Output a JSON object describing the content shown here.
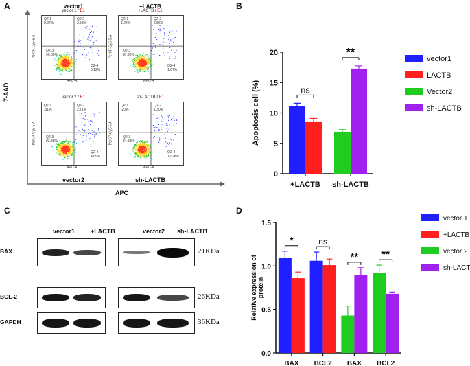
{
  "panels": {
    "a": "A",
    "b": "B",
    "c": "C",
    "d": "D"
  },
  "panel_a": {
    "y_axis_label": "7-AAD",
    "x_axis_label": "APC",
    "plots": [
      {
        "title": "vector1",
        "subtitle_main": "vector 1",
        "subtitle_flag": "E1",
        "q1_name": "Q2-1",
        "q1_val": "0.27%",
        "q2_name": "Q2-2",
        "q2_val": "3.58%",
        "q3_name": "Q2-3",
        "q3_val": "90.80%",
        "q4_name": "Q2-4",
        "q4_val": "5.12%"
      },
      {
        "title": "+LACTB",
        "subtitle_main": "+LACTB",
        "subtitle_flag": "E1",
        "q1_name": "Q2-1",
        "q1_val": "1.24%",
        "q2_name": "Q2-2",
        "q2_val": "5.86%",
        "q3_name": "Q2-3",
        "q3_val": "87.90%",
        "q4_name": "Q2-4",
        "q4_val": "1.07%"
      },
      {
        "title": "",
        "subtitle_main": "vector 2",
        "subtitle_flag": "E1",
        "q1_name": "Q2-1",
        "q1_val": ".31%",
        "q2_name": "Q2-2",
        "q2_val": "2.71%",
        "q3_name": "Q2-3",
        "q3_val": "92.88%",
        "q4_name": "Q2-4",
        "q4_val": "4.89%"
      },
      {
        "title": "",
        "subtitle_main": "sh-LACTB",
        "subtitle_flag": "E1",
        "q1_name": "Q2-1",
        "q1_val": ".20%",
        "q2_name": "Q2-2",
        "q2_val": "1.30%",
        "q3_name": "Q2-3",
        "q3_val": "84.88%",
        "q4_name": "Q2-4",
        "q4_val": "12.28%"
      }
    ],
    "bottom_labels": [
      "vector2",
      "sh-LACTB"
    ],
    "y_tick": "PerCP-Cy5-5-A",
    "x_tick": "APC-A"
  },
  "panel_c": {
    "left_headers": [
      "vector1",
      "+LACTB"
    ],
    "right_headers": [
      "vector2",
      "sh-LACTB"
    ],
    "rows": [
      {
        "name": "BAX",
        "kda": "21KDa"
      },
      {
        "name": "BCL-2",
        "kda": "26KDa"
      },
      {
        "name": "GAPDH",
        "kda": "36KDa"
      }
    ]
  },
  "chart_data": [
    {
      "type": "bar",
      "panel": "B",
      "ylabel": "Apoptosis cell (%)",
      "ylim": [
        0,
        20
      ],
      "yticks": [
        "0",
        "5",
        "10",
        "15",
        "20"
      ],
      "categories": [
        "+LACTB",
        "sh-LACTB"
      ],
      "series": [
        {
          "name": "vector1",
          "color": "#1f1fff",
          "values": [
            11.1,
            null
          ],
          "errors": [
            0.5,
            null
          ]
        },
        {
          "name": "LACTB",
          "color": "#ff1f1f",
          "values": [
            8.6,
            null
          ],
          "errors": [
            0.5,
            null
          ]
        },
        {
          "name": "Vector2",
          "color": "#1fcc1f",
          "values": [
            null,
            6.9
          ],
          "errors": [
            null,
            0.35
          ]
        },
        {
          "name": "sh-LACTB",
          "color": "#a020f0",
          "values": [
            null,
            17.3
          ],
          "errors": [
            null,
            0.45
          ]
        }
      ],
      "annotations": [
        {
          "text": "ns",
          "category": "+LACTB"
        },
        {
          "text": "**",
          "category": "sh-LACTB"
        }
      ],
      "legend": "right"
    },
    {
      "type": "bar",
      "panel": "D",
      "ylabel": "Relative expression of protein",
      "ylim": [
        0,
        1.5
      ],
      "yticks": [
        "0.0",
        "0.5",
        "1.0",
        "1.5"
      ],
      "categories": [
        "BAX",
        "BCL2",
        "BAX",
        "BCL2"
      ],
      "series": [
        {
          "name": "vector 1",
          "color": "#1f1fff",
          "values": [
            1.09,
            1.06,
            null,
            null
          ],
          "errors": [
            0.08,
            0.1,
            null,
            null
          ]
        },
        {
          "name": "+LACTB",
          "color": "#ff1f1f",
          "values": [
            0.86,
            1.01,
            null,
            null
          ],
          "errors": [
            0.07,
            0.07,
            null,
            null
          ]
        },
        {
          "name": "vector 2",
          "color": "#1fcc1f",
          "values": [
            null,
            null,
            0.43,
            0.92
          ],
          "errors": [
            null,
            null,
            0.11,
            0.09
          ]
        },
        {
          "name": "sh-LACT",
          "color": "#a020f0",
          "values": [
            null,
            null,
            0.9,
            0.68
          ],
          "errors": [
            null,
            null,
            0.08,
            0.02
          ]
        }
      ],
      "annotations": [
        {
          "text": "*",
          "category_index": 0
        },
        {
          "text": "ns",
          "category_index": 1
        },
        {
          "text": "**",
          "category_index": 2
        },
        {
          "text": "**",
          "category_index": 3
        }
      ],
      "legend": "right"
    }
  ]
}
